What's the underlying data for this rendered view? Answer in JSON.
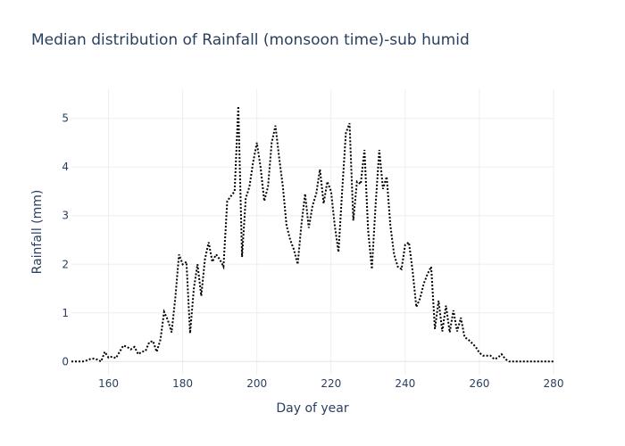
{
  "chart_data": {
    "type": "line",
    "title": "Median distribution of Rainfall (monsoon time)-sub humid",
    "xlabel": "Day of year",
    "ylabel": "Rainfall (mm)",
    "xlim": [
      150,
      280
    ],
    "ylim": [
      -0.27,
      5.6
    ],
    "xticks": [
      160,
      180,
      200,
      220,
      240,
      260,
      280
    ],
    "yticks": [
      0,
      1,
      2,
      3,
      4,
      5
    ],
    "grid": true,
    "legend": "none",
    "line_color": "#000000",
    "line_style": "dotted",
    "series": [
      {
        "x": [
          150,
          151,
          152,
          153,
          154,
          155,
          156,
          157,
          158,
          159,
          160,
          161,
          162,
          163,
          164,
          165,
          166,
          167,
          168,
          169,
          170,
          171,
          172,
          173,
          174,
          175,
          176,
          177,
          178,
          179,
          180,
          181,
          182,
          183,
          184,
          185,
          186,
          187,
          188,
          189,
          190,
          191,
          192,
          193,
          194,
          195,
          196,
          197,
          198,
          199,
          200,
          201,
          202,
          203,
          204,
          205,
          206,
          207,
          208,
          209,
          210,
          211,
          212,
          213,
          214,
          215,
          216,
          217,
          218,
          219,
          220,
          221,
          222,
          223,
          224,
          225,
          226,
          227,
          228,
          229,
          230,
          231,
          232,
          233,
          234,
          235,
          236,
          237,
          238,
          239,
          240,
          241,
          242,
          243,
          244,
          245,
          246,
          247,
          248,
          249,
          250,
          251,
          252,
          253,
          254,
          255,
          256,
          257,
          258,
          259,
          260,
          261,
          262,
          263,
          264,
          265,
          266,
          267,
          268,
          269,
          270,
          271,
          272,
          273,
          274,
          275,
          276,
          277,
          278,
          279,
          280
        ],
        "y": [
          0,
          0,
          0,
          0,
          0.02,
          0.05,
          0.06,
          0.04,
          0,
          0.2,
          0.08,
          0.1,
          0.07,
          0.2,
          0.33,
          0.3,
          0.25,
          0.3,
          0.15,
          0.2,
          0.22,
          0.4,
          0.42,
          0.2,
          0.45,
          1.02,
          0.85,
          0.6,
          1.3,
          2.2,
          2.0,
          2.05,
          0.58,
          1.5,
          2.0,
          1.35,
          2.1,
          2.45,
          2.05,
          2.2,
          2.1,
          1.95,
          3.3,
          3.4,
          3.5,
          5.25,
          2.15,
          3.35,
          3.6,
          4.1,
          4.5,
          4.0,
          3.3,
          3.6,
          4.5,
          4.85,
          4.2,
          3.6,
          2.8,
          2.5,
          2.3,
          2.0,
          2.8,
          3.45,
          2.75,
          3.2,
          3.45,
          3.95,
          3.25,
          3.7,
          3.5,
          2.8,
          2.25,
          3.5,
          4.7,
          4.9,
          2.9,
          3.7,
          3.65,
          4.35,
          2.7,
          1.9,
          3.2,
          4.35,
          3.55,
          3.8,
          2.8,
          2.2,
          1.95,
          1.9,
          2.4,
          2.45,
          1.85,
          1.12,
          1.3,
          1.6,
          1.8,
          1.95,
          0.67,
          1.25,
          0.62,
          1.15,
          0.6,
          1.05,
          0.62,
          0.9,
          0.5,
          0.45,
          0.38,
          0.3,
          0.18,
          0.12,
          0.12,
          0.12,
          0.05,
          0.08,
          0.15,
          0.05,
          0,
          0,
          0,
          0,
          0,
          0,
          0,
          0,
          0,
          0,
          0,
          0,
          0
        ]
      }
    ]
  }
}
